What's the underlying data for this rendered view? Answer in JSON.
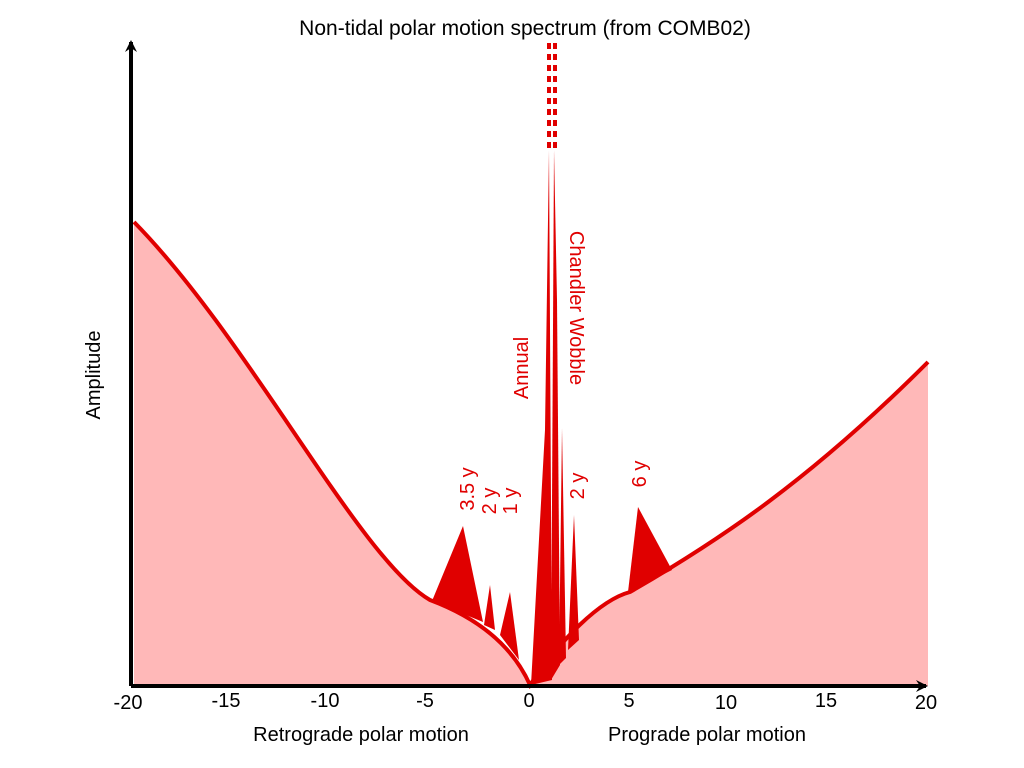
{
  "title": "Non-tidal polar motion spectrum (from COMB02)",
  "y_axis_label": "Amplitude",
  "x_ticks": [
    "-20",
    "-15",
    "-10",
    "-5",
    "0",
    "5",
    "10",
    "15",
    "20"
  ],
  "x_label_left": "Retrograde polar motion",
  "x_label_right": "Prograde polar motion",
  "peak_labels": {
    "annual": "Annual",
    "chandler": "Chandler Wobble",
    "retro_3_5y": "3.5 y",
    "retro_2y": "2 y",
    "retro_1y": "1 y",
    "pro_2y": "2 y",
    "pro_6y": "6 y"
  },
  "colors": {
    "curve": "#e00000",
    "fill": "#ffb8b8",
    "peaks": "#e00000",
    "axis": "#000000"
  }
}
